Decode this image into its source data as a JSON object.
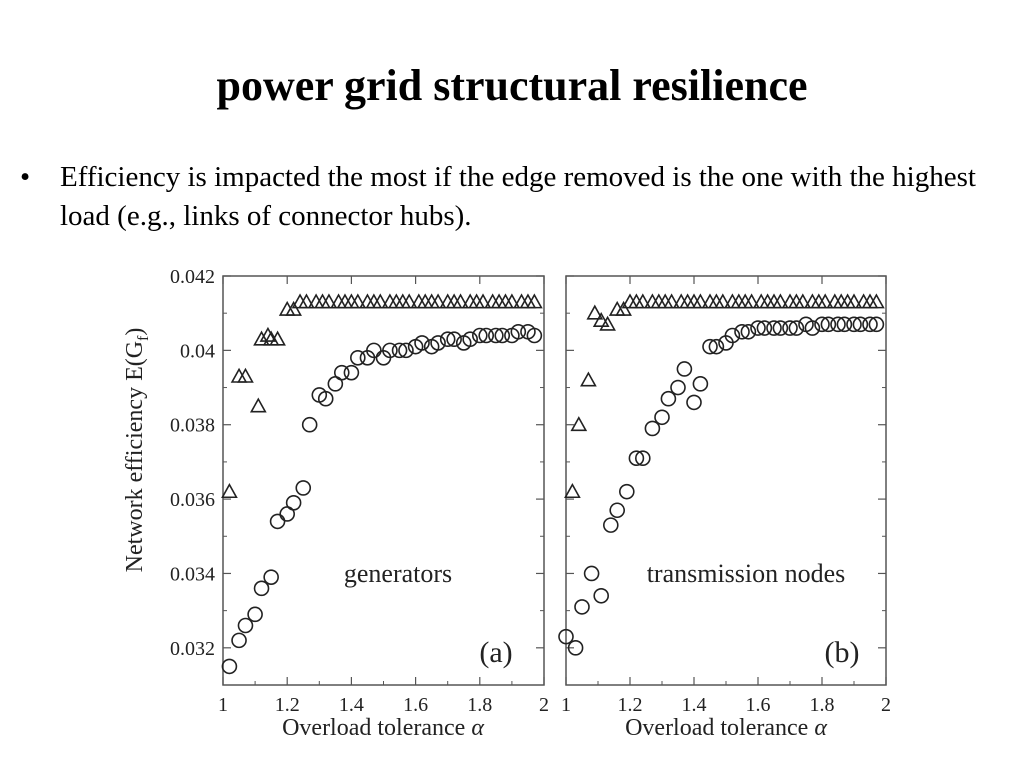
{
  "slide": {
    "title": "power grid structural resilience",
    "bullet_symbol": "•",
    "bullet_text": "Efficiency is impacted the most if the edge removed is the one with the highest load (e.g., links of connector hubs)."
  },
  "chart_data": [
    {
      "type": "scatter",
      "panel_label": "(a)",
      "annotation": "generators",
      "ylabel": "Network efficiency E(G",
      "ylabel_sub": "f",
      "ylabel_close": ")",
      "xlabel": "Overload tolerance",
      "xlabel_symbol": "α",
      "xlim": [
        1,
        2
      ],
      "ylim": [
        0.031,
        0.042
      ],
      "xticks": [
        "1",
        "1.2",
        "1.4",
        "1.6",
        "1.8",
        "2"
      ],
      "yticks": [
        "0.032",
        "0.034",
        "0.036",
        "0.038",
        "0.04",
        "0.042"
      ],
      "series": [
        {
          "marker": "triangle",
          "x": [
            1.02,
            1.05,
            1.07,
            1.11,
            1.12,
            1.14,
            1.15,
            1.17,
            1.2,
            1.22,
            1.24,
            1.26,
            1.29,
            1.31,
            1.33,
            1.36,
            1.38,
            1.4,
            1.42,
            1.45,
            1.47,
            1.49,
            1.52,
            1.54,
            1.56,
            1.58,
            1.61,
            1.63,
            1.65,
            1.67,
            1.7,
            1.72,
            1.74,
            1.77,
            1.79,
            1.81,
            1.84,
            1.86,
            1.88,
            1.9,
            1.93,
            1.95,
            1.97
          ],
          "y": [
            0.0362,
            0.0393,
            0.0393,
            0.0385,
            0.0403,
            0.0404,
            0.0403,
            0.0403,
            0.0411,
            0.0411,
            0.0413,
            0.0413,
            0.0413,
            0.0413,
            0.0413,
            0.0413,
            0.0413,
            0.0413,
            0.0413,
            0.0413,
            0.0413,
            0.0413,
            0.0413,
            0.0413,
            0.0413,
            0.0413,
            0.0413,
            0.0413,
            0.0413,
            0.0413,
            0.0413,
            0.0413,
            0.0413,
            0.0413,
            0.0413,
            0.0413,
            0.0413,
            0.0413,
            0.0413,
            0.0413,
            0.0413,
            0.0413,
            0.0413
          ]
        },
        {
          "marker": "circle",
          "x": [
            1.02,
            1.05,
            1.07,
            1.1,
            1.12,
            1.15,
            1.17,
            1.2,
            1.22,
            1.25,
            1.27,
            1.3,
            1.32,
            1.35,
            1.37,
            1.4,
            1.42,
            1.45,
            1.47,
            1.5,
            1.52,
            1.55,
            1.57,
            1.6,
            1.62,
            1.65,
            1.67,
            1.7,
            1.72,
            1.75,
            1.77,
            1.8,
            1.82,
            1.85,
            1.87,
            1.9,
            1.92,
            1.95,
            1.97
          ],
          "y": [
            0.0315,
            0.0322,
            0.0326,
            0.0329,
            0.0336,
            0.0339,
            0.0354,
            0.0356,
            0.0359,
            0.0363,
            0.038,
            0.0388,
            0.0387,
            0.0391,
            0.0394,
            0.0394,
            0.0398,
            0.0398,
            0.04,
            0.0398,
            0.04,
            0.04,
            0.04,
            0.0401,
            0.0402,
            0.0401,
            0.0402,
            0.0403,
            0.0403,
            0.0402,
            0.0403,
            0.0404,
            0.0404,
            0.0404,
            0.0404,
            0.0404,
            0.0405,
            0.0405,
            0.0404
          ]
        }
      ]
    },
    {
      "type": "scatter",
      "panel_label": "(b)",
      "annotation": "transmission nodes",
      "xlabel": "Overload tolerance",
      "xlabel_symbol": "α",
      "xlim": [
        1,
        2
      ],
      "ylim": [
        0.031,
        0.042
      ],
      "xticks": [
        "1",
        "1.2",
        "1.4",
        "1.6",
        "1.8",
        "2"
      ],
      "series": [
        {
          "marker": "triangle",
          "x": [
            1.02,
            1.04,
            1.07,
            1.09,
            1.11,
            1.13,
            1.16,
            1.18,
            1.2,
            1.22,
            1.24,
            1.27,
            1.29,
            1.31,
            1.33,
            1.36,
            1.38,
            1.4,
            1.42,
            1.45,
            1.47,
            1.49,
            1.52,
            1.54,
            1.56,
            1.58,
            1.61,
            1.63,
            1.65,
            1.67,
            1.7,
            1.72,
            1.74,
            1.77,
            1.79,
            1.81,
            1.84,
            1.86,
            1.88,
            1.9,
            1.93,
            1.95,
            1.97
          ],
          "y": [
            0.0362,
            0.038,
            0.0392,
            0.041,
            0.0408,
            0.0407,
            0.0411,
            0.0411,
            0.0413,
            0.0413,
            0.0413,
            0.0413,
            0.0413,
            0.0413,
            0.0413,
            0.0413,
            0.0413,
            0.0413,
            0.0413,
            0.0413,
            0.0413,
            0.0413,
            0.0413,
            0.0413,
            0.0413,
            0.0413,
            0.0413,
            0.0413,
            0.0413,
            0.0413,
            0.0413,
            0.0413,
            0.0413,
            0.0413,
            0.0413,
            0.0413,
            0.0413,
            0.0413,
            0.0413,
            0.0413,
            0.0413,
            0.0413,
            0.0413
          ]
        },
        {
          "marker": "circle",
          "x": [
            1.0,
            1.03,
            1.05,
            1.08,
            1.11,
            1.14,
            1.16,
            1.19,
            1.22,
            1.24,
            1.27,
            1.3,
            1.32,
            1.35,
            1.37,
            1.4,
            1.42,
            1.45,
            1.47,
            1.5,
            1.52,
            1.55,
            1.57,
            1.6,
            1.62,
            1.65,
            1.67,
            1.7,
            1.72,
            1.75,
            1.77,
            1.8,
            1.82,
            1.85,
            1.87,
            1.9,
            1.92,
            1.95,
            1.97
          ],
          "y": [
            0.0323,
            0.032,
            0.0331,
            0.034,
            0.0334,
            0.0353,
            0.0357,
            0.0362,
            0.0371,
            0.0371,
            0.0379,
            0.0382,
            0.0387,
            0.039,
            0.0395,
            0.0386,
            0.0391,
            0.0401,
            0.0401,
            0.0402,
            0.0404,
            0.0405,
            0.0405,
            0.0406,
            0.0406,
            0.0406,
            0.0406,
            0.0406,
            0.0406,
            0.0407,
            0.0406,
            0.0407,
            0.0407,
            0.0407,
            0.0407,
            0.0407,
            0.0407,
            0.0407,
            0.0407
          ]
        }
      ]
    }
  ]
}
